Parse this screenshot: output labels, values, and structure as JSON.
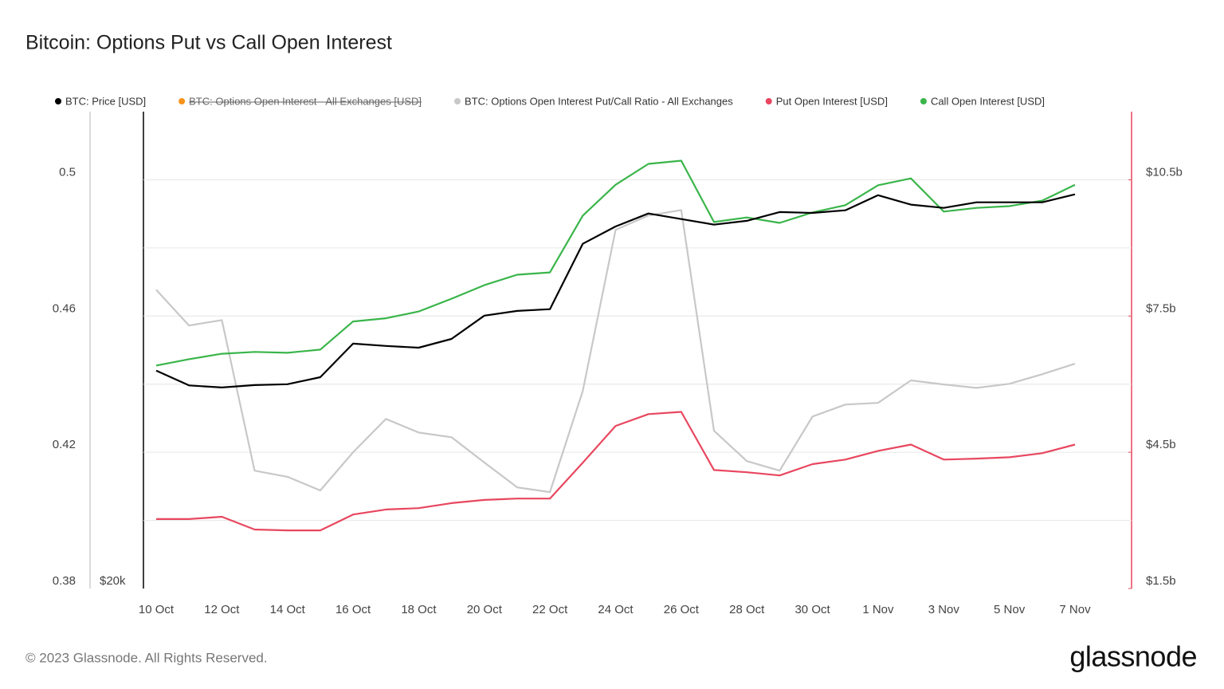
{
  "chart_data": {
    "type": "line",
    "title": "Bitcoin: Options Put vs Call Open Interest",
    "footer": "© 2023 Glassnode. All Rights Reserved.",
    "brand": "glassnode",
    "categories": [
      "10 Oct",
      null,
      "12 Oct",
      null,
      "14 Oct",
      null,
      "16 Oct",
      null,
      "18 Oct",
      null,
      "20 Oct",
      null,
      "22 Oct",
      null,
      "24 Oct",
      null,
      "26 Oct",
      null,
      "28 Oct",
      null,
      "30 Oct",
      null,
      "1 Nov",
      null,
      "3 Nov",
      null,
      "5 Nov",
      null,
      "7 Nov"
    ],
    "ylim": [
      0.38,
      0.52
    ],
    "yticks": [
      0.38,
      0.42,
      0.46,
      0.5
    ],
    "yminorticks": [
      0.4,
      0.44,
      0.48
    ],
    "y2lim": [
      1.5,
      12
    ],
    "y2ticks": [
      {
        "value": 1.5,
        "label": "$1.5b"
      },
      {
        "value": 4.5,
        "label": "$4.5b"
      },
      {
        "value": 7.5,
        "label": "$7.5b"
      },
      {
        "value": 10.5,
        "label": "$10.5b"
      }
    ],
    "y3lim": [
      20000,
      36200
    ],
    "y3ticks": [
      {
        "value": 20000,
        "label": "$20k"
      }
    ],
    "grid": true,
    "series": [
      {
        "name": "BTC: Price [USD]",
        "color": "#000000",
        "axis": "y3",
        "values": [
          27400,
          26900,
          26830,
          26910,
          26940,
          27180,
          28320,
          28240,
          28180,
          28480,
          29270,
          29430,
          29490,
          31710,
          32300,
          32740,
          32550,
          32360,
          32490,
          32790,
          32760,
          32850,
          33360,
          33040,
          32930,
          33120,
          33120,
          33120,
          33390
        ]
      },
      {
        "name": "BTC: Options Open Interest - All Exchanges [USD]",
        "color": "#f7931a",
        "axis": "y2",
        "hidden": true,
        "values": [
          null,
          null,
          null,
          null,
          null,
          null,
          null,
          null,
          null,
          null,
          null,
          null,
          null,
          null,
          null,
          null,
          null,
          null,
          null,
          null,
          null,
          null,
          null,
          null,
          null,
          null,
          null,
          null,
          null
        ]
      },
      {
        "name": "BTC: Options Open Interest Put/Call Ratio - All Exchanges",
        "color": "#c8c8c8",
        "axis": "y",
        "values": [
          0.4677,
          0.4572,
          0.4588,
          0.4146,
          0.4128,
          0.4088,
          0.42,
          0.4298,
          0.4258,
          0.4244,
          0.417,
          0.4097,
          0.4083,
          0.438,
          0.4853,
          0.4895,
          0.4911,
          0.4263,
          0.4174,
          0.4146,
          0.4305,
          0.434,
          0.4345,
          0.4411,
          0.4399,
          0.4389,
          0.4401,
          0.4429,
          0.446
        ]
      },
      {
        "name": "Put Open Interest [USD]",
        "color": "#e8475f",
        "axis": "y2",
        "values": [
          3.03,
          3.03,
          3.08,
          2.8,
          2.78,
          2.78,
          3.13,
          3.24,
          3.27,
          3.38,
          3.45,
          3.48,
          3.48,
          4.27,
          5.08,
          5.34,
          5.39,
          4.11,
          4.06,
          3.99,
          4.24,
          4.34,
          4.53,
          4.67,
          4.34,
          4.36,
          4.39,
          4.48,
          4.67
        ]
      },
      {
        "name": "Call Open Interest [USD]",
        "color": "#3ab54a",
        "axis": "y2",
        "values": [
          6.41,
          6.55,
          6.67,
          6.71,
          6.69,
          6.76,
          7.38,
          7.45,
          7.6,
          7.88,
          8.18,
          8.41,
          8.46,
          9.71,
          10.39,
          10.85,
          10.92,
          9.57,
          9.67,
          9.55,
          9.78,
          9.94,
          10.38,
          10.53,
          9.8,
          9.88,
          9.92,
          10.04,
          10.39
        ]
      }
    ]
  }
}
